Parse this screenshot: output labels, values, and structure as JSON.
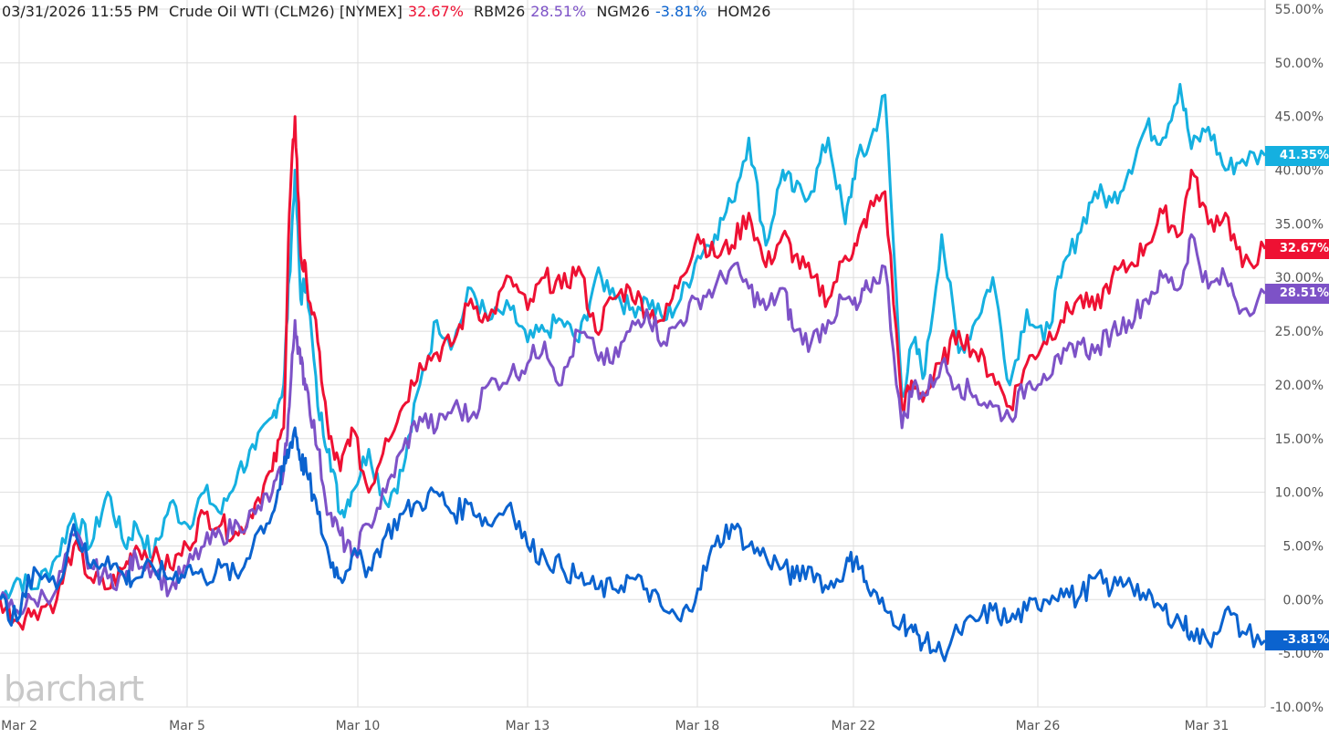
{
  "header": {
    "timestamp": "03/31/2026  11:55 PM",
    "symbol": "Crude Oil WTI (CLM26) [NYMEX]",
    "symbol_change": "32.67%",
    "s2": "RBM26",
    "s2_change": "28.51%",
    "s3": "NGM26",
    "s3_change": "-3.81%",
    "s4": "HOM26"
  },
  "watermark": "barchart",
  "colors": {
    "crude": "#ee1133",
    "rb": "#7d52c7",
    "ng": "#0b63cf",
    "ho": "#15b0e0",
    "grid": "#dedede"
  },
  "chart_data": {
    "type": "line",
    "title": "Crude Oil WTI (CLM26) [NYMEX] vs RBM26, NGM26, HOM26 — percent change",
    "ylim": [
      -10,
      55
    ],
    "y_ticks": [
      55,
      50,
      45,
      40,
      35,
      30,
      25,
      20,
      15,
      10,
      5,
      0,
      -5,
      -10
    ],
    "y_tick_labels": [
      "55.00%",
      "50.00%",
      "45.00%",
      "40.00%",
      "35.00%",
      "30.00%",
      "25.00%",
      "20.00%",
      "15.00%",
      "10.00%",
      "5.00%",
      "0.00%",
      "-5.00%",
      "-10.00%"
    ],
    "x_ticks": [
      0,
      3,
      6,
      9,
      12,
      15,
      18,
      21,
      23.5
    ],
    "x_tick_labels": [
      "Mar 2",
      "Mar 5",
      "Mar 10",
      "Mar 13",
      "Mar 18",
      "Mar 22",
      "Mar 26",
      "Mar 31"
    ],
    "x_tick_positions": [
      0,
      3,
      6,
      9,
      12,
      14.7,
      18,
      21
    ],
    "xlim": [
      0,
      22.3
    ],
    "series": [
      {
        "name": "HOM26",
        "color": "#15b0e0",
        "last_label": "41.35%",
        "x": [
          0,
          0.3,
          0.6,
          1,
          1.3,
          1.6,
          1.9,
          2.2,
          2.4,
          2.7,
          3,
          3.3,
          3.6,
          3.9,
          4.2,
          4.5,
          4.8,
          5,
          5.1,
          5.2,
          5.3,
          5.4,
          5.6,
          5.8,
          6,
          6.2,
          6.5,
          6.8,
          7.1,
          7.4,
          7.7,
          8,
          8.3,
          8.6,
          9,
          9.3,
          9.6,
          9.9,
          10.2,
          10.5,
          10.8,
          11.1,
          11.4,
          11.7,
          12,
          12.3,
          12.6,
          12.9,
          13.2,
          13.5,
          13.8,
          14,
          14.3,
          14.6,
          14.9,
          15.1,
          15.3,
          15.6,
          15.9,
          16.1,
          16.3,
          16.6,
          16.9,
          17.2,
          17.5,
          17.8,
          18.1,
          18.4,
          18.7,
          19,
          19.3,
          19.6,
          19.9,
          20.2,
          20.5,
          20.8,
          21,
          21.3,
          21.6,
          21.9,
          22.3
        ],
        "values": [
          0,
          2,
          1,
          4,
          8,
          5,
          10,
          5,
          7,
          4,
          9,
          7,
          10,
          8,
          12,
          14,
          17,
          20,
          30,
          40,
          28,
          30,
          18,
          14,
          8,
          10,
          14,
          9,
          12,
          20,
          26,
          24,
          29,
          26,
          27,
          24,
          25,
          26,
          24,
          30,
          29,
          27,
          28,
          26,
          28,
          32,
          34,
          37,
          43,
          33,
          40,
          38,
          38,
          43,
          35,
          41,
          42,
          47,
          19,
          24,
          21,
          34,
          23,
          26,
          30,
          20,
          27,
          24,
          30,
          34,
          38,
          37,
          40,
          44,
          43,
          48,
          42,
          44,
          40,
          41,
          41.35
        ]
      },
      {
        "name": "CLM26",
        "color": "#ee1133",
        "last_label": "32.67%",
        "x": [
          0,
          0.3,
          0.6,
          1,
          1.3,
          1.6,
          1.9,
          2.2,
          2.4,
          2.7,
          3,
          3.3,
          3.6,
          3.9,
          4.2,
          4.5,
          4.8,
          5,
          5.1,
          5.2,
          5.3,
          5.4,
          5.6,
          5.8,
          6,
          6.2,
          6.5,
          6.8,
          7.1,
          7.4,
          7.7,
          8,
          8.3,
          8.6,
          9,
          9.3,
          9.6,
          9.9,
          10.2,
          10.5,
          10.8,
          11.1,
          11.4,
          11.7,
          12,
          12.3,
          12.6,
          12.9,
          13.2,
          13.5,
          13.8,
          14,
          14.3,
          14.6,
          14.9,
          15.1,
          15.3,
          15.6,
          15.9,
          16.1,
          16.3,
          16.6,
          16.9,
          17.2,
          17.5,
          17.8,
          18.1,
          18.4,
          18.7,
          19,
          19.3,
          19.6,
          19.9,
          20.2,
          20.5,
          20.8,
          21,
          21.3,
          21.6,
          21.9,
          22.3
        ],
        "values": [
          0,
          -2,
          -1,
          0,
          5,
          2,
          1,
          3,
          5,
          4,
          3,
          5,
          8,
          7,
          6,
          9,
          12,
          16,
          36,
          45,
          32,
          30,
          24,
          15,
          12,
          16,
          10,
          15,
          18,
          22,
          23,
          24,
          28,
          26,
          30,
          27,
          30,
          29,
          31,
          25,
          28,
          29,
          27,
          26,
          30,
          34,
          32,
          33,
          36,
          31,
          34,
          32,
          30,
          28,
          32,
          33,
          36,
          38,
          18,
          20,
          19,
          22,
          25,
          23,
          21,
          18,
          22,
          24,
          26,
          28,
          27,
          30,
          31,
          33,
          36,
          34,
          40,
          35,
          36,
          31,
          32.67
        ]
      },
      {
        "name": "RBM26",
        "color": "#7d52c7",
        "last_label": "28.51%",
        "x": [
          0,
          0.3,
          0.6,
          1,
          1.3,
          1.6,
          1.9,
          2.2,
          2.4,
          2.7,
          3,
          3.3,
          3.6,
          3.9,
          4.2,
          4.5,
          4.8,
          5,
          5.1,
          5.2,
          5.3,
          5.4,
          5.6,
          5.8,
          6,
          6.2,
          6.5,
          6.8,
          7.1,
          7.4,
          7.7,
          8,
          8.3,
          8.6,
          9,
          9.3,
          9.6,
          9.9,
          10.2,
          10.5,
          10.8,
          11.1,
          11.4,
          11.7,
          12,
          12.3,
          12.6,
          12.9,
          13.2,
          13.5,
          13.8,
          14,
          14.3,
          14.6,
          14.9,
          15.1,
          15.3,
          15.6,
          15.9,
          16.1,
          16.3,
          16.6,
          16.9,
          17.2,
          17.5,
          17.8,
          18.1,
          18.4,
          18.7,
          19,
          19.3,
          19.6,
          19.9,
          20.2,
          20.5,
          20.8,
          21,
          21.3,
          21.6,
          21.9,
          22.3
        ],
        "values": [
          0,
          -1,
          0,
          1,
          6,
          3,
          2,
          2,
          4,
          3,
          1,
          3,
          5,
          6,
          7,
          8,
          10,
          12,
          18,
          26,
          22,
          20,
          14,
          8,
          6,
          4,
          7,
          10,
          14,
          17,
          16,
          18,
          17,
          20,
          21,
          22,
          24,
          20,
          25,
          23,
          22,
          25,
          27,
          24,
          26,
          28,
          29,
          31,
          29,
          27,
          29,
          25,
          24,
          26,
          28,
          27,
          29,
          31,
          16,
          20,
          19,
          22,
          20,
          19,
          18,
          17,
          20,
          21,
          22,
          24,
          23,
          25,
          26,
          28,
          30,
          29,
          34,
          29,
          30,
          27,
          28.51
        ]
      },
      {
        "name": "NGM26",
        "color": "#0b63cf",
        "last_label": "-3.81%",
        "x": [
          0,
          0.3,
          0.6,
          1,
          1.3,
          1.6,
          1.9,
          2.2,
          2.4,
          2.7,
          3,
          3.3,
          3.6,
          3.9,
          4.2,
          4.5,
          4.8,
          5,
          5.1,
          5.2,
          5.3,
          5.4,
          5.6,
          5.8,
          6,
          6.2,
          6.5,
          6.8,
          7.1,
          7.4,
          7.7,
          8,
          8.3,
          8.6,
          9,
          9.3,
          9.6,
          9.9,
          10.2,
          10.5,
          10.8,
          11.1,
          11.4,
          11.7,
          12,
          12.3,
          12.6,
          12.9,
          13.2,
          13.5,
          13.8,
          14,
          14.3,
          14.6,
          14.9,
          15.1,
          15.3,
          15.6,
          15.9,
          16.1,
          16.3,
          16.6,
          16.9,
          17.2,
          17.5,
          17.8,
          18.1,
          18.4,
          18.7,
          19,
          19.3,
          19.6,
          19.9,
          20.2,
          20.5,
          20.8,
          21,
          21.3,
          21.6,
          21.9,
          22.3
        ],
        "values": [
          0,
          -2,
          3,
          1,
          7,
          3,
          4,
          2,
          2,
          3,
          2,
          3,
          2,
          3,
          2,
          6,
          8,
          12,
          14,
          16,
          13,
          12,
          8,
          4,
          2,
          4,
          3,
          6,
          8,
          9,
          10,
          8,
          9,
          7,
          9,
          5,
          4,
          3,
          2,
          1,
          1,
          2,
          1,
          -1,
          -2,
          1,
          5,
          7,
          5,
          4,
          3,
          2,
          3,
          1,
          3,
          4,
          1,
          -1,
          -2,
          -3,
          -4,
          -5,
          -3,
          -2,
          -1,
          -2,
          -1,
          0,
          1,
          0,
          2,
          1,
          2,
          0,
          -1,
          -2,
          -3,
          -4,
          -1,
          -3,
          -3.81
        ]
      }
    ]
  }
}
